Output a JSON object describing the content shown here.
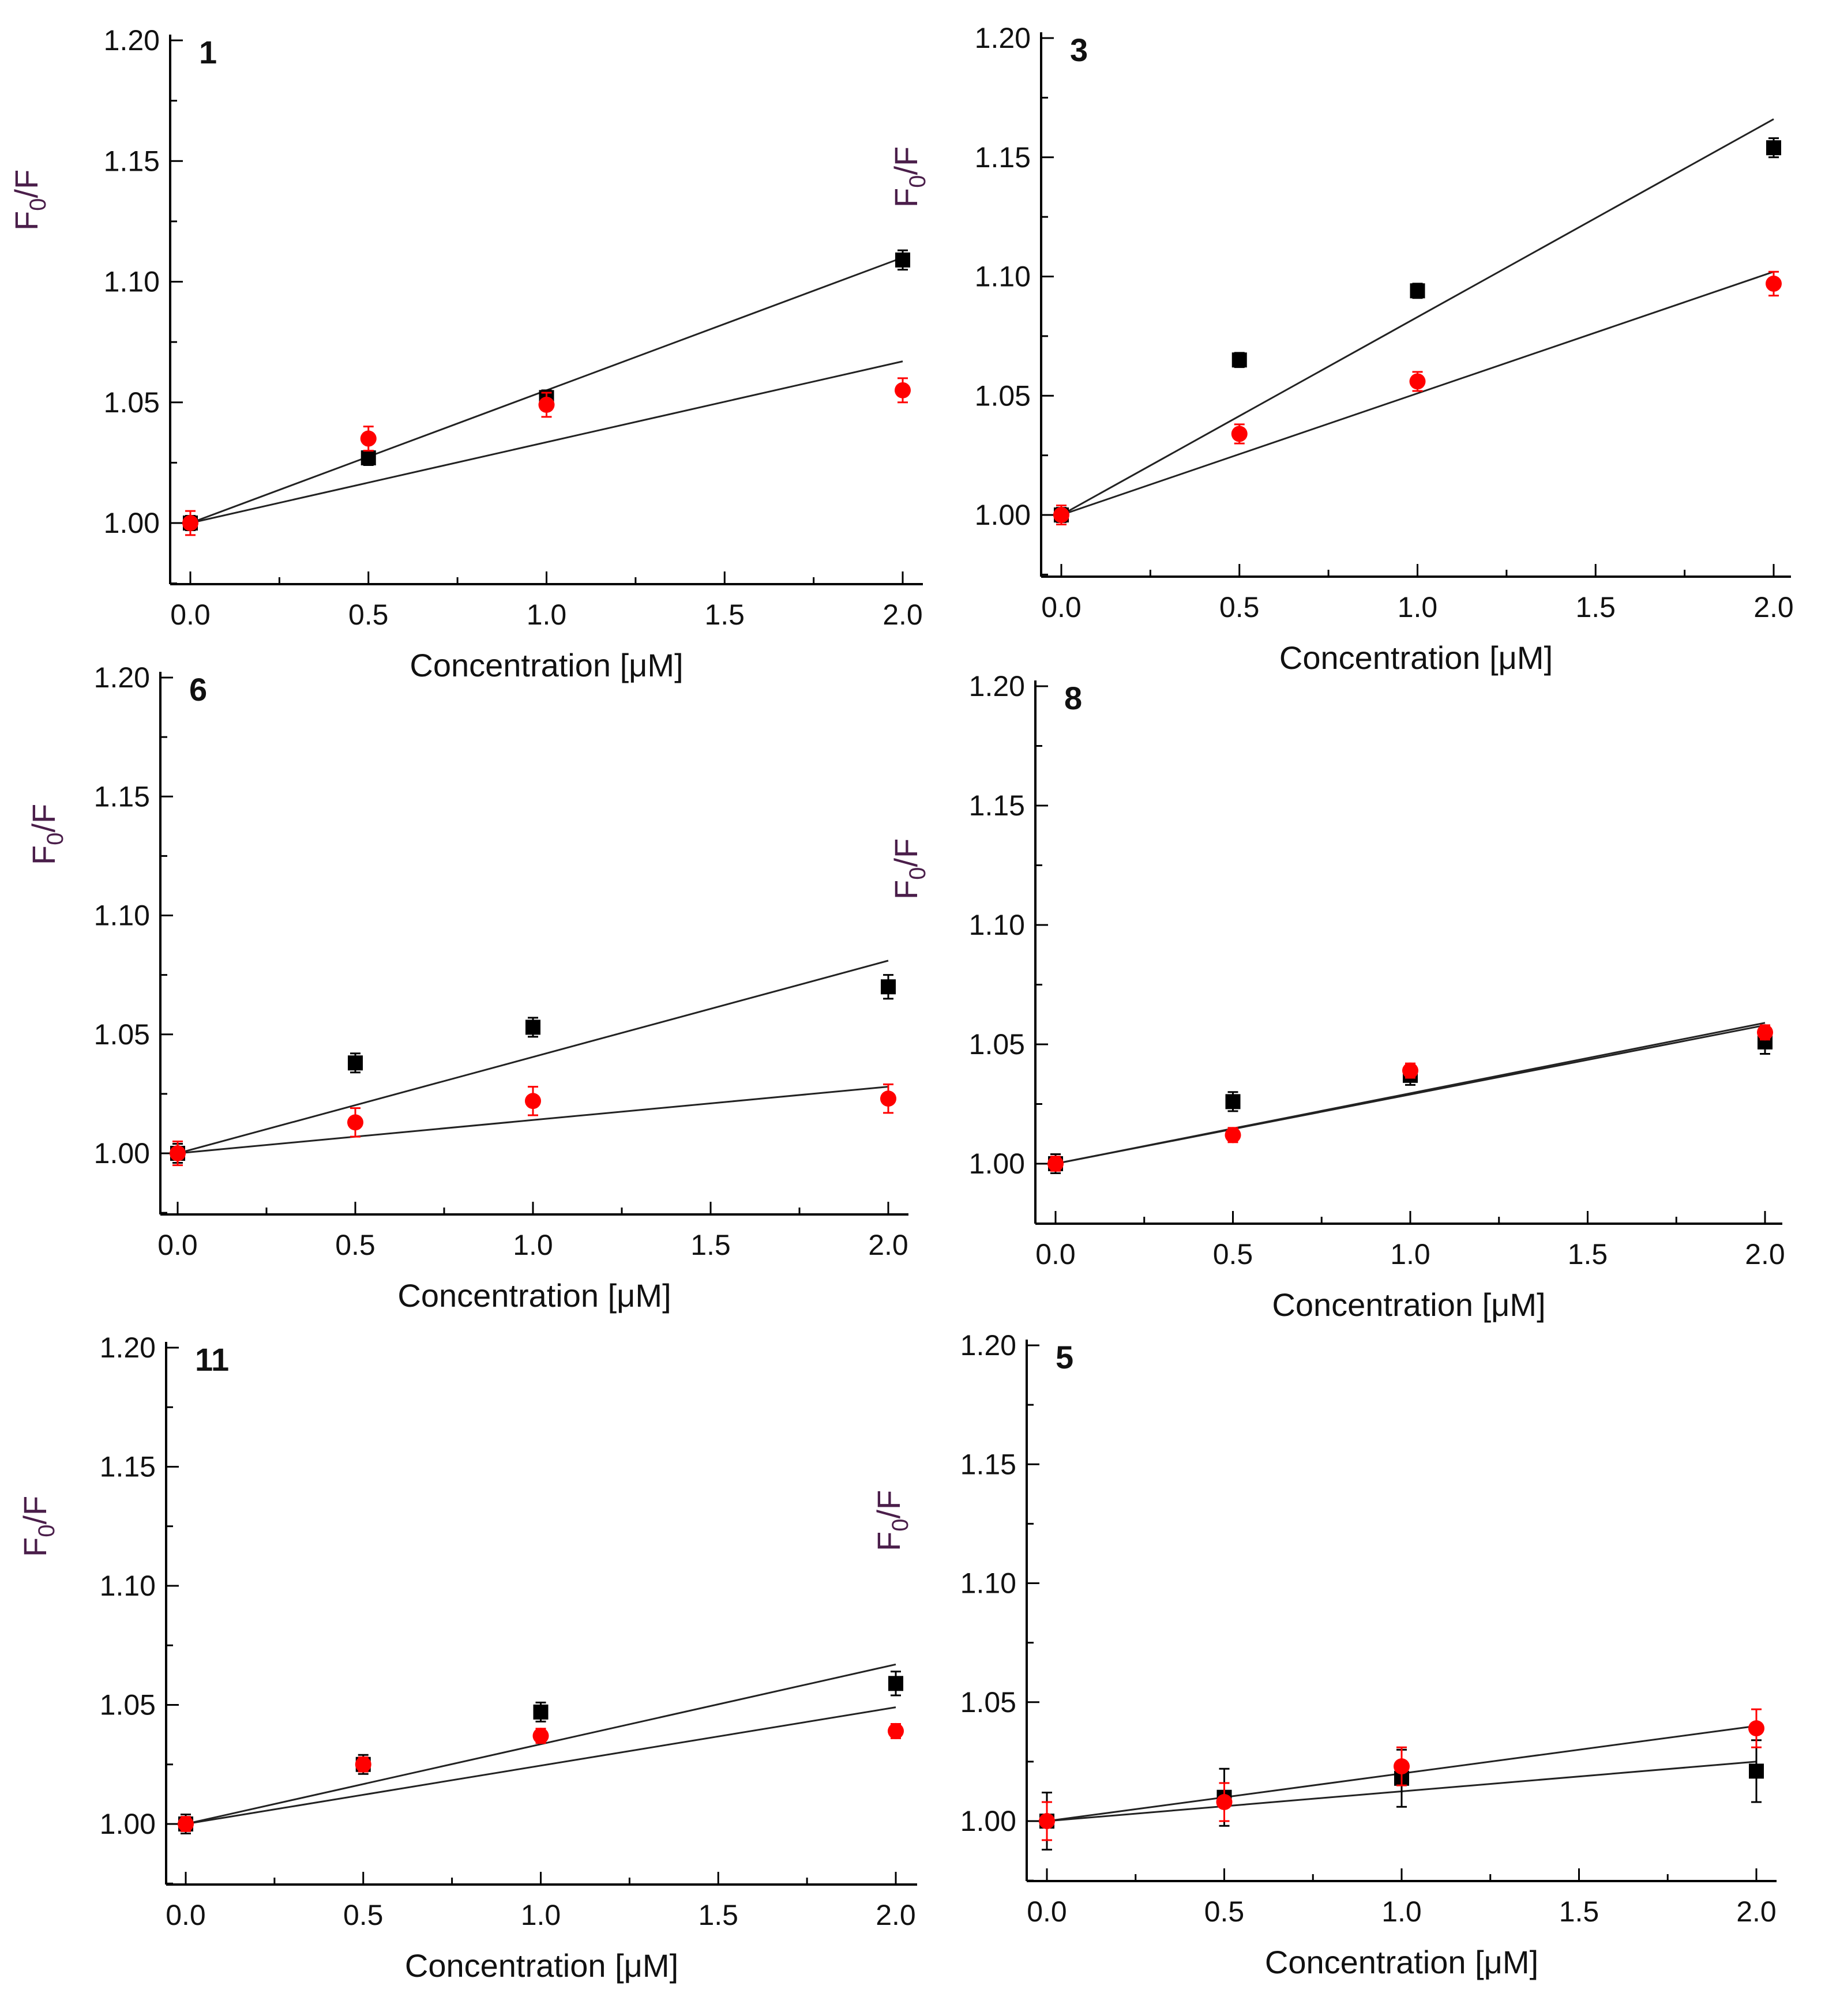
{
  "chart_data": [
    {
      "type": "scatter",
      "panel_label": "1",
      "xlabel": "Concentration [μM]",
      "ylabel_main": "F",
      "ylabel_sub": "0",
      "ylabel_tail": "/F",
      "xlim": [
        0,
        2.0
      ],
      "ylim": [
        0.975,
        1.2
      ],
      "xticks": [
        "0.0",
        "0.5",
        "1.0",
        "1.5",
        "2.0"
      ],
      "yticks": [
        "1.00",
        "1.05",
        "1.10",
        "1.15",
        "1.20"
      ],
      "x": [
        0,
        0.5,
        1.0,
        2.0
      ],
      "series": [
        {
          "marker": "square",
          "color": "#000000",
          "values": [
            1.0,
            1.027,
            1.052,
            1.109
          ],
          "errors": [
            0.003,
            0.003,
            0.003,
            0.004
          ],
          "fit": [
            1.0,
            1.11
          ]
        },
        {
          "marker": "circle",
          "color": "#ff0000",
          "values": [
            1.0,
            1.035,
            1.049,
            1.055
          ],
          "errors": [
            0.005,
            0.005,
            0.005,
            0.005
          ],
          "fit": [
            1.0,
            1.067
          ]
        }
      ]
    },
    {
      "type": "scatter",
      "panel_label": "3",
      "xlabel": "Concentration [μM]",
      "ylabel_main": "F",
      "ylabel_sub": "0",
      "ylabel_tail": "/F",
      "xlim": [
        0,
        2.0
      ],
      "ylim": [
        0.975,
        1.2
      ],
      "xticks": [
        "0.0",
        "0.5",
        "1.0",
        "1.5",
        "2.0"
      ],
      "yticks": [
        "1.00",
        "1.05",
        "1.10",
        "1.15",
        "1.20"
      ],
      "x": [
        0,
        0.5,
        1.0,
        2.0
      ],
      "series": [
        {
          "marker": "square",
          "color": "#000000",
          "values": [
            1.0,
            1.065,
            1.094,
            1.154
          ],
          "errors": [
            0.003,
            0.003,
            0.003,
            0.004
          ],
          "fit": [
            1.0,
            1.166
          ]
        },
        {
          "marker": "circle",
          "color": "#ff0000",
          "values": [
            1.0,
            1.034,
            1.056,
            1.097
          ],
          "errors": [
            0.004,
            0.004,
            0.004,
            0.005
          ],
          "fit": [
            1.0,
            1.102
          ]
        }
      ]
    },
    {
      "type": "scatter",
      "panel_label": "6",
      "xlabel": "Concentration [μM]",
      "ylabel_main": "F",
      "ylabel_sub": "0",
      "ylabel_tail": "/F",
      "xlim": [
        0,
        2.0
      ],
      "ylim": [
        0.975,
        1.2
      ],
      "xticks": [
        "0.0",
        "0.5",
        "1.0",
        "1.5",
        "2.0"
      ],
      "yticks": [
        "1.00",
        "1.05",
        "1.10",
        "1.15",
        "1.20"
      ],
      "x": [
        0,
        0.5,
        1.0,
        2.0
      ],
      "series": [
        {
          "marker": "square",
          "color": "#000000",
          "values": [
            1.0,
            1.038,
            1.053,
            1.07
          ],
          "errors": [
            0.004,
            0.004,
            0.004,
            0.005
          ],
          "fit": [
            1.0,
            1.081
          ]
        },
        {
          "marker": "circle",
          "color": "#ff0000",
          "values": [
            1.0,
            1.013,
            1.022,
            1.023
          ],
          "errors": [
            0.005,
            0.006,
            0.006,
            0.006
          ],
          "fit": [
            1.0,
            1.028
          ]
        }
      ]
    },
    {
      "type": "scatter",
      "panel_label": "8",
      "xlabel": "Concentration [μM]",
      "ylabel_main": "F",
      "ylabel_sub": "0",
      "ylabel_tail": "/F",
      "xlim": [
        0,
        2.0
      ],
      "ylim": [
        0.975,
        1.2
      ],
      "xticks": [
        "0.0",
        "0.5",
        "1.0",
        "1.5",
        "2.0"
      ],
      "yticks": [
        "1.00",
        "1.05",
        "1.10",
        "1.15",
        "1.20"
      ],
      "x": [
        0,
        0.5,
        1.0,
        2.0
      ],
      "series": [
        {
          "marker": "square",
          "color": "#000000",
          "values": [
            1.0,
            1.026,
            1.037,
            1.051
          ],
          "errors": [
            0.004,
            0.004,
            0.004,
            0.005
          ],
          "fit": [
            1.0,
            1.059
          ]
        },
        {
          "marker": "circle",
          "color": "#ff0000",
          "values": [
            1.0,
            1.012,
            1.039,
            1.055
          ],
          "errors": [
            0.003,
            0.003,
            0.003,
            0.003
          ],
          "fit": [
            1.0,
            1.058
          ]
        }
      ]
    },
    {
      "type": "scatter",
      "panel_label": "11",
      "xlabel": "Concentration [μM]",
      "ylabel_main": "F",
      "ylabel_sub": "0",
      "ylabel_tail": "/F",
      "xlim": [
        0,
        2.0
      ],
      "ylim": [
        0.975,
        1.2
      ],
      "xticks": [
        "0.0",
        "0.5",
        "1.0",
        "1.5",
        "2.0"
      ],
      "yticks": [
        "1.00",
        "1.05",
        "1.10",
        "1.15",
        "1.20"
      ],
      "x": [
        0,
        0.5,
        1.0,
        2.0
      ],
      "series": [
        {
          "marker": "square",
          "color": "#000000",
          "values": [
            1.0,
            1.025,
            1.047,
            1.059
          ],
          "errors": [
            0.004,
            0.004,
            0.004,
            0.005
          ],
          "fit": [
            1.0,
            1.067
          ]
        },
        {
          "marker": "circle",
          "color": "#ff0000",
          "values": [
            1.0,
            1.025,
            1.037,
            1.039
          ],
          "errors": [
            0.003,
            0.003,
            0.003,
            0.003
          ],
          "fit": [
            1.0,
            1.049
          ]
        }
      ]
    },
    {
      "type": "scatter",
      "panel_label": "5",
      "xlabel": "Concentration [μM]",
      "ylabel_main": "F",
      "ylabel_sub": "0",
      "ylabel_tail": "/F",
      "xlim": [
        0,
        2.0
      ],
      "ylim": [
        0.975,
        1.2
      ],
      "xticks": [
        "0.0",
        "0.5",
        "1.0",
        "1.5",
        "2.0"
      ],
      "yticks": [
        "1.00",
        "1.05",
        "1.10",
        "1.15",
        "1.20"
      ],
      "x": [
        0,
        0.5,
        1.0,
        2.0
      ],
      "series": [
        {
          "marker": "square",
          "color": "#000000",
          "values": [
            1.0,
            1.01,
            1.018,
            1.021
          ],
          "errors": [
            0.012,
            0.012,
            0.012,
            0.013
          ],
          "fit": [
            1.0,
            1.025
          ]
        },
        {
          "marker": "circle",
          "color": "#ff0000",
          "values": [
            1.0,
            1.008,
            1.023,
            1.039
          ],
          "errors": [
            0.008,
            0.008,
            0.008,
            0.008
          ],
          "fit": [
            1.0,
            1.04
          ]
        }
      ]
    }
  ]
}
